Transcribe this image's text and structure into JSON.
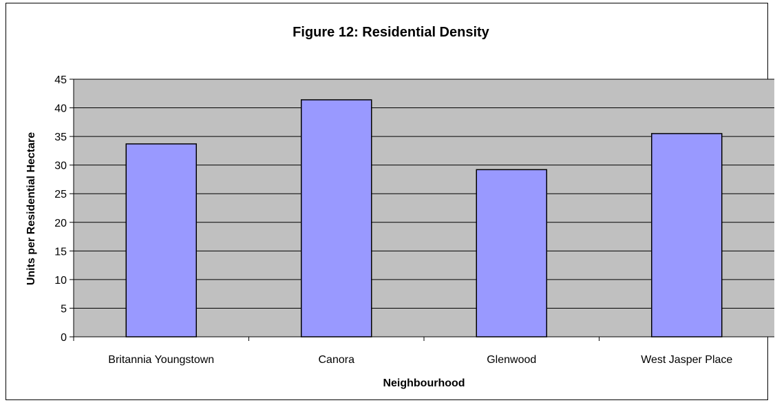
{
  "chart_data": {
    "type": "bar",
    "title": "Figure 12: Residential Density",
    "xlabel": "Neighbourhood",
    "ylabel": "Units per Residential Hectare",
    "categories": [
      "Britannia Youngstown",
      "Canora",
      "Glenwood",
      "West Jasper Place"
    ],
    "values": [
      33.7,
      41.4,
      29.2,
      35.5
    ],
    "ylim": [
      0,
      45
    ],
    "yticks": [
      0,
      5,
      10,
      15,
      20,
      25,
      30,
      35,
      40,
      45
    ],
    "grid": true,
    "legend": "none",
    "colors": {
      "bar_fill": "#9999ff",
      "bar_stroke": "#000000",
      "plot_background": "#c0c0c0",
      "gridline": "#000000"
    }
  }
}
